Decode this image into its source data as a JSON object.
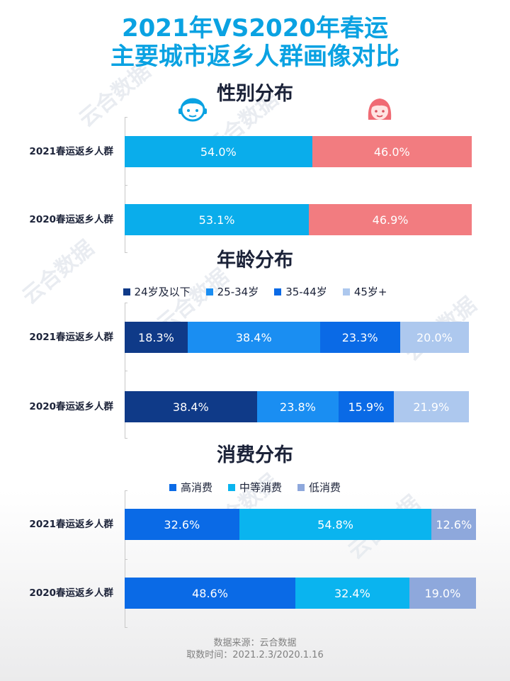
{
  "title_line1": "2021年VS2020年春运",
  "title_line2": "主要城市返乡人群画像对比",
  "watermark_text": "云合数据",
  "footer": {
    "source": "数据来源：云合数据",
    "period": "取数时间：2021.2.3/2020.1.16"
  },
  "chart_data": [
    {
      "type": "bar",
      "stacked": true,
      "orientation": "horizontal",
      "title": "性别分布",
      "legend_icons": [
        "male-face-icon",
        "female-face-icon"
      ],
      "categories": [
        "2021春运返乡人群",
        "2020春运返乡人群"
      ],
      "series": [
        {
          "key": "male",
          "values": [
            54.0,
            53.1
          ],
          "labels": [
            "54.0%",
            "53.1%"
          ],
          "color": "#0aadeb"
        },
        {
          "key": "female",
          "values": [
            46.0,
            46.9
          ],
          "labels": [
            "46.0%",
            "46.9%"
          ],
          "color": "#f27c80"
        }
      ]
    },
    {
      "type": "bar",
      "stacked": true,
      "orientation": "horizontal",
      "title": "年龄分布",
      "categories": [
        "2021春运返乡人群",
        "2020春运返乡人群"
      ],
      "series": [
        {
          "name": "24岁及以下",
          "values": [
            18.3,
            38.4
          ],
          "labels": [
            "18.3%",
            "38.4%"
          ],
          "color": "#0f3a88"
        },
        {
          "name": "25-34岁",
          "values": [
            38.4,
            23.8
          ],
          "labels": [
            "38.4%",
            "23.8%"
          ],
          "color": "#1a8ef2"
        },
        {
          "name": "35-44岁",
          "values": [
            23.3,
            15.9
          ],
          "labels": [
            "23.3%",
            "15.9%"
          ],
          "color": "#0a6ae6"
        },
        {
          "name": "45岁+",
          "values": [
            20.0,
            21.9
          ],
          "labels": [
            "20.0%",
            "21.9%"
          ],
          "color": "#adc8ee"
        }
      ]
    },
    {
      "type": "bar",
      "stacked": true,
      "orientation": "horizontal",
      "title": "消费分布",
      "categories": [
        "2021春运返乡人群",
        "2020春运返乡人群"
      ],
      "series": [
        {
          "name": "高消费",
          "values": [
            32.6,
            48.6
          ],
          "labels": [
            "32.6%",
            "48.6%"
          ],
          "color": "#0a6ae6"
        },
        {
          "name": "中等消费",
          "values": [
            54.8,
            32.4
          ],
          "labels": [
            "54.8%",
            "32.4%"
          ],
          "color": "#0ab4ef"
        },
        {
          "name": "低消费",
          "values": [
            12.6,
            19.0
          ],
          "labels": [
            "12.6%",
            "19.0%"
          ],
          "color": "#8ea8dc"
        }
      ]
    }
  ]
}
